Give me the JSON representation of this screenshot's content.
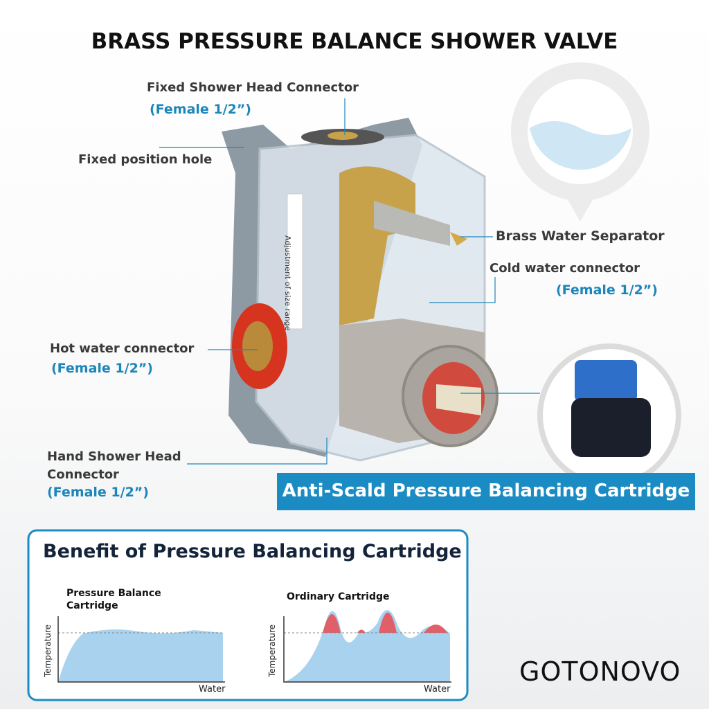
{
  "title": "BRASS PRESSURE BALANCE SHOWER VALVE",
  "callouts": [
    {
      "label": "Fixed Shower Head Connector",
      "note": "(Female 1/2”)"
    },
    {
      "label": "Fixed position hole"
    },
    {
      "label": "Brass Water Separator"
    },
    {
      "label": "Cold water connector",
      "note": "(Female 1/2”)"
    },
    {
      "label": "Hot water connector",
      "note": "(Female 1/2”)"
    },
    {
      "label": "Hand Shower Head Connector",
      "note": "(Female 1/2”)"
    }
  ],
  "product_label": "Adjustment of size range",
  "banner": "Anti-Scald Pressure Balancing Cartridge",
  "benefit": {
    "title": "Benefit of Pressure Balancing Cartridge",
    "panels": [
      {
        "title": "Pressure Balance Cartridge",
        "y_label": "Temperature",
        "x_label": "Water"
      },
      {
        "title": "Ordinary Cartridge",
        "y_label": "Temperature",
        "x_label": "Water"
      }
    ]
  },
  "brand": "GOTONOVO"
}
